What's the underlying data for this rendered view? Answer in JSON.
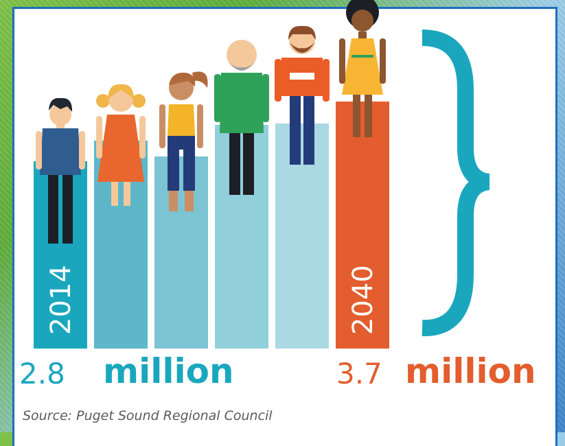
{
  "chart_data": {
    "type": "bar",
    "categories": [
      "2014",
      "",
      "",
      "",
      "",
      "2040"
    ],
    "values": [
      2.8,
      2.98,
      3.16,
      3.34,
      3.52,
      3.7
    ],
    "unit": "million",
    "start_label": "2014",
    "end_label": "2040",
    "start_value_text": "2.8",
    "end_value_text": "3.7",
    "unit_text": "million",
    "source": "Source: Puget Sound Regional Council",
    "colors": {
      "bars": [
        "#1aa7be",
        "#5db7c9",
        "#7cc4d3",
        "#91cfdb",
        "#aad8e3",
        "#e35d2e"
      ],
      "start_text": "#1aa7be",
      "end_text": "#e35d2e",
      "brace": "#1aa7be",
      "frame": "#1c6fbf"
    },
    "figure_icons": [
      "boy-icon",
      "girl-icon",
      "woman-icon",
      "elder-man-icon",
      "bearded-man-icon",
      "woman-dress-icon"
    ]
  }
}
